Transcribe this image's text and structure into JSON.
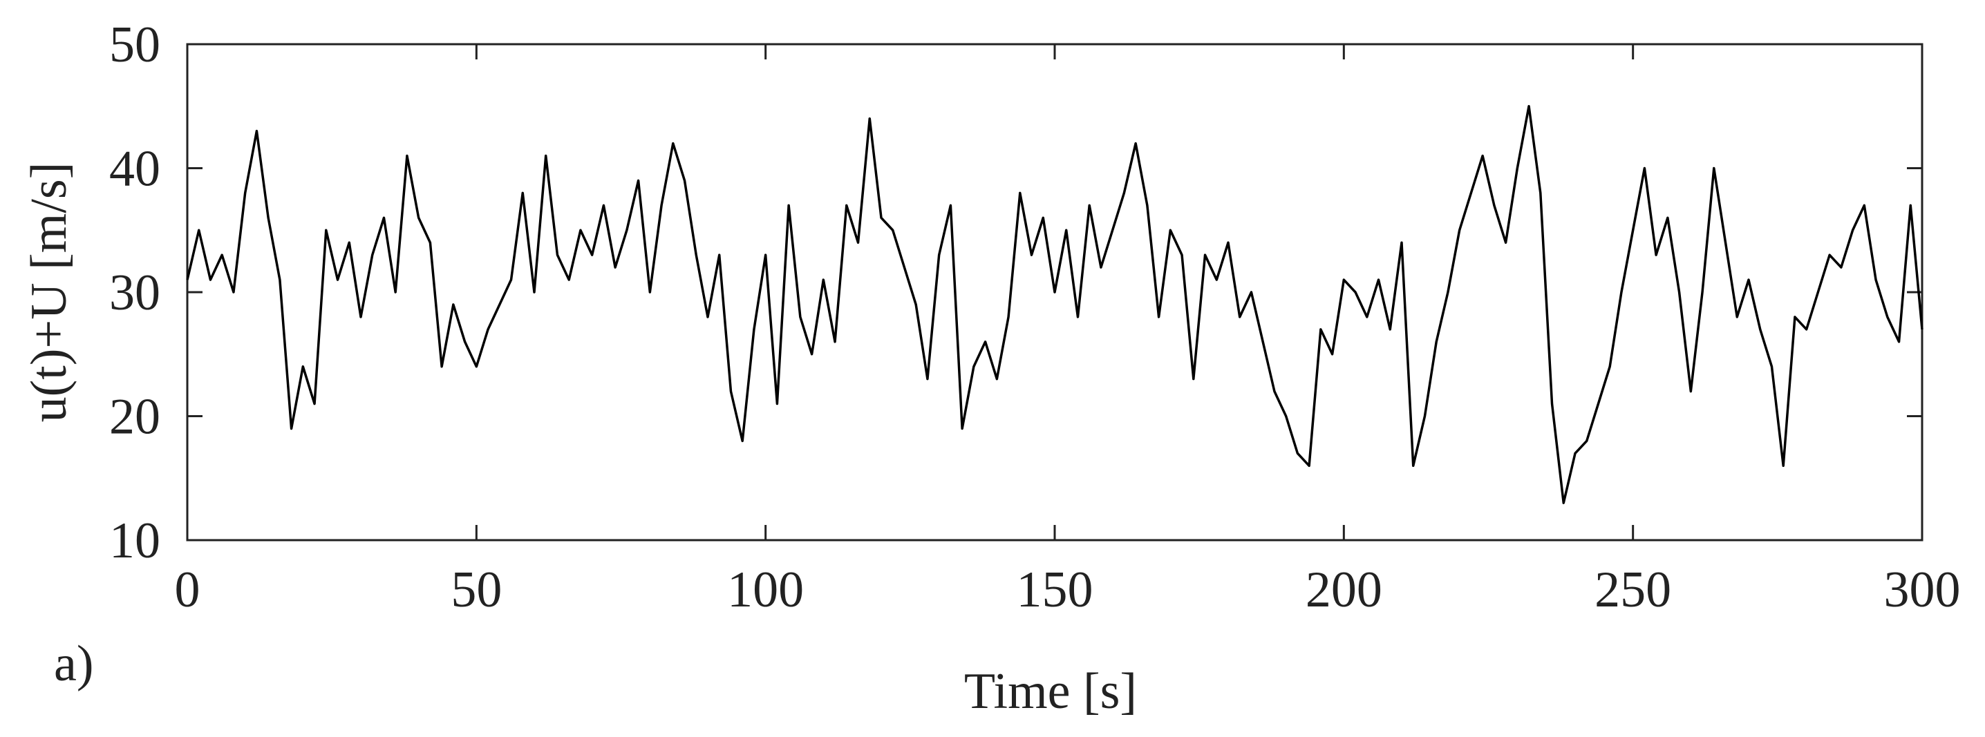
{
  "chart_data": {
    "type": "line",
    "annotation": "a)",
    "xlabel": "Time [s]",
    "ylabel": "u(t)+U [m/s]",
    "x": [
      0,
      2,
      4,
      6,
      8,
      10,
      12,
      14,
      16,
      18,
      20,
      22,
      24,
      26,
      28,
      30,
      32,
      34,
      36,
      38,
      40,
      42,
      44,
      46,
      48,
      50,
      52,
      54,
      56,
      58,
      60,
      62,
      64,
      66,
      68,
      70,
      72,
      74,
      76,
      78,
      80,
      82,
      84,
      86,
      88,
      90,
      92,
      94,
      96,
      98,
      100,
      102,
      104,
      106,
      108,
      110,
      112,
      114,
      116,
      118,
      120,
      122,
      124,
      126,
      128,
      130,
      132,
      134,
      136,
      138,
      140,
      142,
      144,
      146,
      148,
      150,
      152,
      154,
      156,
      158,
      160,
      162,
      164,
      166,
      168,
      170,
      172,
      174,
      176,
      178,
      180,
      182,
      184,
      186,
      188,
      190,
      192,
      194,
      196,
      198,
      200,
      202,
      204,
      206,
      208,
      210,
      212,
      214,
      216,
      218,
      220,
      222,
      224,
      226,
      228,
      230,
      232,
      234,
      236,
      238,
      240,
      242,
      244,
      246,
      248,
      250,
      252,
      254,
      256,
      258,
      260,
      262,
      264,
      266,
      268,
      270,
      272,
      274,
      276,
      278,
      280,
      282,
      284,
      286,
      288,
      290,
      292,
      294,
      296,
      298,
      300
    ],
    "series": [
      {
        "color": "#000000",
        "values": [
          31,
          35,
          31,
          33,
          30,
          38,
          43,
          36,
          31,
          19,
          24,
          21,
          35,
          31,
          34,
          28,
          33,
          36,
          30,
          41,
          36,
          34,
          24,
          29,
          26,
          24,
          27,
          29,
          31,
          38,
          30,
          41,
          33,
          31,
          35,
          33,
          37,
          32,
          35,
          39,
          30,
          37,
          42,
          39,
          33,
          28,
          33,
          22,
          18,
          27,
          33,
          21,
          37,
          28,
          25,
          31,
          26,
          37,
          34,
          44,
          36,
          35,
          32,
          29,
          23,
          33,
          37,
          19,
          24,
          26,
          23,
          28,
          38,
          33,
          36,
          30,
          35,
          28,
          37,
          32,
          35,
          38,
          42,
          37,
          28,
          35,
          33,
          23,
          33,
          31,
          34,
          28,
          30,
          26,
          22,
          20,
          17,
          16,
          27,
          25,
          31,
          30,
          28,
          31,
          27,
          34,
          16,
          20,
          26,
          30,
          35,
          38,
          41,
          37,
          34,
          40,
          45,
          38,
          21,
          13,
          17,
          18,
          21,
          24,
          30,
          35,
          40,
          33,
          36,
          30,
          22,
          30,
          40,
          34,
          28,
          31,
          27,
          24,
          16,
          28,
          27,
          30,
          33,
          32,
          35,
          37,
          31,
          28,
          26,
          37,
          27
        ]
      }
    ],
    "xlim": [
      0,
      300
    ],
    "xticks": [
      0,
      50,
      100,
      150,
      200,
      250,
      300
    ],
    "ylim": [
      10,
      50
    ],
    "yticks": [
      10,
      20,
      30,
      40,
      50
    ]
  }
}
